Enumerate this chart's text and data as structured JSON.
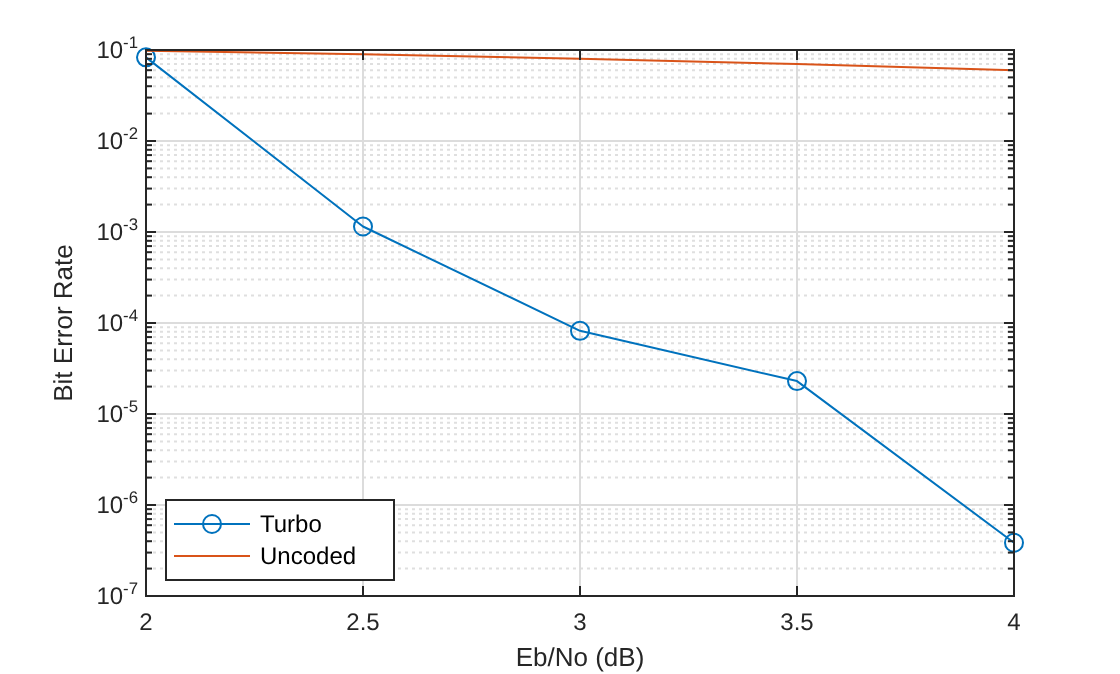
{
  "chart_data": {
    "type": "line",
    "xlabel": "Eb/No (dB)",
    "ylabel": "Bit Error Rate",
    "x": [
      2,
      2.5,
      3,
      3.5,
      4
    ],
    "series": [
      {
        "name": "Turbo",
        "color": "#0072bd",
        "marker": "circle",
        "values": [
          0.083,
          0.00115,
          8.2e-05,
          2.3e-05,
          3.85e-07
        ]
      },
      {
        "name": "Uncoded",
        "color": "#d95319",
        "marker": "none",
        "values": [
          0.098,
          0.09,
          0.08,
          0.07,
          0.06
        ]
      }
    ],
    "log": "y",
    "xlim": [
      2,
      4
    ],
    "ylim": [
      1e-07,
      0.1
    ],
    "xticks": [
      2,
      2.5,
      3,
      3.5,
      4
    ],
    "yticks": [
      {
        "value": 1e-07,
        "label": "10$^{-7}$"
      },
      {
        "value": 1e-06,
        "label": "10$^{-6}$"
      },
      {
        "value": 1e-05,
        "label": "10$^{-5}$"
      },
      {
        "value": 0.0001,
        "label": "10$^{-4}$"
      },
      {
        "value": 0.001,
        "label": "10$^{-3}$"
      },
      {
        "value": 0.01,
        "label": "10$^{-2}$"
      },
      {
        "value": 0.1,
        "label": "10$^{-1}$"
      }
    ],
    "grid": true,
    "legend": "bottom left",
    "line_style": "solid"
  }
}
